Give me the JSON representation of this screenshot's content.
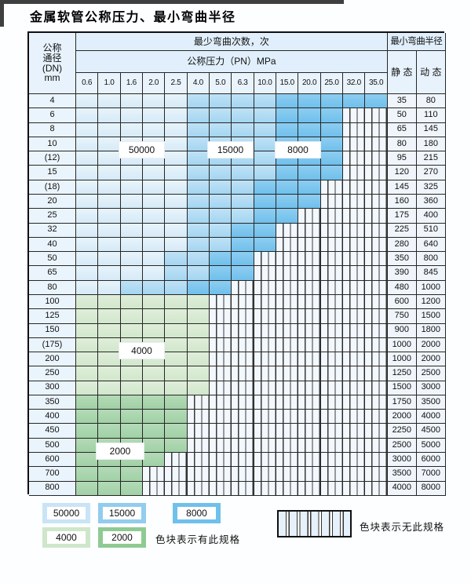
{
  "title": "金属软管公称压力、最小弯曲半径",
  "table": {
    "header": {
      "dn_lines": [
        "公称",
        "通径",
        "(DN)",
        "mm"
      ],
      "cycles": "最少弯曲次数，次",
      "pressure": "公称压力（PN）MPa",
      "radius": "最小弯曲半径",
      "static": "静 态",
      "dynamic": "动 态",
      "pressures": [
        "0.6",
        "1.0",
        "1.6",
        "2.0",
        "2.5",
        "4.0",
        "5.0",
        "6.3",
        "10.0",
        "15.0",
        "20.0",
        "25.0",
        "32.0",
        "35.0"
      ]
    },
    "rows": [
      {
        "dn": "4",
        "zones": [
          [
            "b1",
            5
          ],
          [
            "b2",
            4
          ],
          [
            "b3",
            5
          ]
        ],
        "static": "35",
        "dynamic": "80"
      },
      {
        "dn": "6",
        "zones": [
          [
            "b1",
            5
          ],
          [
            "b2",
            4
          ],
          [
            "b3",
            3
          ],
          [
            "x",
            2
          ]
        ],
        "static": "50",
        "dynamic": "110"
      },
      {
        "dn": "8",
        "zones": [
          [
            "b1",
            5
          ],
          [
            "b2",
            4
          ],
          [
            "b3",
            3
          ],
          [
            "x",
            2
          ]
        ],
        "static": "65",
        "dynamic": "145"
      },
      {
        "dn": "10",
        "zones": [
          [
            "b1",
            5
          ],
          [
            "b2",
            4
          ],
          [
            "b3",
            3
          ],
          [
            "x",
            2
          ]
        ],
        "static": "80",
        "dynamic": "180"
      },
      {
        "dn": "(12)",
        "zones": [
          [
            "b1",
            5
          ],
          [
            "b2",
            4
          ],
          [
            "b3",
            3
          ],
          [
            "x",
            2
          ]
        ],
        "static": "95",
        "dynamic": "215"
      },
      {
        "dn": "15",
        "zones": [
          [
            "b1",
            5
          ],
          [
            "b2",
            4
          ],
          [
            "b3",
            3
          ],
          [
            "x",
            2
          ]
        ],
        "static": "120",
        "dynamic": "270"
      },
      {
        "dn": "(18)",
        "zones": [
          [
            "b1",
            5
          ],
          [
            "b2",
            3
          ],
          [
            "b3",
            3
          ],
          [
            "x",
            3
          ]
        ],
        "static": "145",
        "dynamic": "325"
      },
      {
        "dn": "20",
        "zones": [
          [
            "b1",
            5
          ],
          [
            "b2",
            3
          ],
          [
            "b3",
            3
          ],
          [
            "x",
            3
          ]
        ],
        "static": "160",
        "dynamic": "360"
      },
      {
        "dn": "25",
        "zones": [
          [
            "b1",
            5
          ],
          [
            "b2",
            3
          ],
          [
            "b3",
            2
          ],
          [
            "x",
            4
          ]
        ],
        "static": "175",
        "dynamic": "400"
      },
      {
        "dn": "32",
        "zones": [
          [
            "b1",
            5
          ],
          [
            "b2",
            2
          ],
          [
            "b3",
            2
          ],
          [
            "x",
            5
          ]
        ],
        "static": "225",
        "dynamic": "510"
      },
      {
        "dn": "40",
        "zones": [
          [
            "b1",
            5
          ],
          [
            "b2",
            2
          ],
          [
            "b3",
            2
          ],
          [
            "x",
            5
          ]
        ],
        "static": "280",
        "dynamic": "640"
      },
      {
        "dn": "50",
        "zones": [
          [
            "b1",
            4
          ],
          [
            "b2",
            2
          ],
          [
            "b3",
            2
          ],
          [
            "x",
            6
          ]
        ],
        "static": "350",
        "dynamic": "800"
      },
      {
        "dn": "65",
        "zones": [
          [
            "b1",
            4
          ],
          [
            "b2",
            2
          ],
          [
            "b3",
            2
          ],
          [
            "x",
            6
          ]
        ],
        "static": "390",
        "dynamic": "845"
      },
      {
        "dn": "80",
        "zones": [
          [
            "b1",
            2
          ],
          [
            "b2",
            3
          ],
          [
            "b3",
            2
          ],
          [
            "x",
            7
          ]
        ],
        "static": "480",
        "dynamic": "1000"
      },
      {
        "dn": "100",
        "zones": [
          [
            "g1",
            6
          ],
          [
            "x",
            8
          ]
        ],
        "static": "600",
        "dynamic": "1200"
      },
      {
        "dn": "125",
        "zones": [
          [
            "g1",
            6
          ],
          [
            "x",
            8
          ]
        ],
        "static": "750",
        "dynamic": "1500"
      },
      {
        "dn": "150",
        "zones": [
          [
            "g1",
            6
          ],
          [
            "x",
            8
          ]
        ],
        "static": "900",
        "dynamic": "1800"
      },
      {
        "dn": "(175)",
        "zones": [
          [
            "g1",
            6
          ],
          [
            "x",
            8
          ]
        ],
        "static": "1000",
        "dynamic": "2000"
      },
      {
        "dn": "200",
        "zones": [
          [
            "g1",
            6
          ],
          [
            "x",
            8
          ]
        ],
        "static": "1000",
        "dynamic": "2000"
      },
      {
        "dn": "250",
        "zones": [
          [
            "g1",
            6
          ],
          [
            "x",
            8
          ]
        ],
        "static": "1250",
        "dynamic": "2500"
      },
      {
        "dn": "300",
        "zones": [
          [
            "g1",
            6
          ],
          [
            "x",
            8
          ]
        ],
        "static": "1500",
        "dynamic": "3000"
      },
      {
        "dn": "350",
        "zones": [
          [
            "g2",
            5
          ],
          [
            "x",
            9
          ]
        ],
        "static": "1750",
        "dynamic": "3500"
      },
      {
        "dn": "400",
        "zones": [
          [
            "g2",
            5
          ],
          [
            "x",
            9
          ]
        ],
        "static": "2000",
        "dynamic": "4000"
      },
      {
        "dn": "450",
        "zones": [
          [
            "g2",
            5
          ],
          [
            "x",
            9
          ]
        ],
        "static": "2250",
        "dynamic": "4500"
      },
      {
        "dn": "500",
        "zones": [
          [
            "g2",
            5
          ],
          [
            "x",
            9
          ]
        ],
        "static": "2500",
        "dynamic": "5000"
      },
      {
        "dn": "600",
        "zones": [
          [
            "g2",
            4
          ],
          [
            "x",
            10
          ]
        ],
        "static": "3000",
        "dynamic": "6000"
      },
      {
        "dn": "700",
        "zones": [
          [
            "g2",
            3
          ],
          [
            "x",
            11
          ]
        ],
        "static": "3500",
        "dynamic": "7000"
      },
      {
        "dn": "800",
        "zones": [
          [
            "g2",
            3
          ],
          [
            "x",
            11
          ]
        ],
        "static": "4000",
        "dynamic": "8000"
      }
    ]
  },
  "overlay_labels": {
    "l50000": "50000",
    "l15000": "15000",
    "l8000": "8000",
    "l4000": "4000",
    "l2000": "2000"
  },
  "legend": {
    "items": [
      {
        "label": "50000",
        "color": "#c9e4f6"
      },
      {
        "label": "15000",
        "color": "#92ccee"
      },
      {
        "label": "8000",
        "color": "#6fc0ea"
      },
      {
        "label": "4000",
        "color": "#cfe6ca"
      },
      {
        "label": "2000",
        "color": "#8fca92"
      }
    ],
    "has_spec": "色块表示有此规格",
    "no_spec": "色块表示无此规格"
  }
}
